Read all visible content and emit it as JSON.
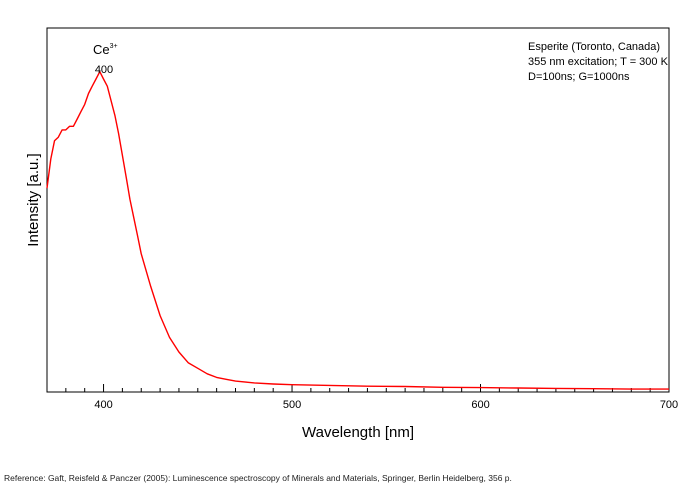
{
  "chart_data": {
    "type": "line",
    "xlabel": "Wavelength [nm]",
    "ylabel": "Intensity [a.u.]",
    "xlim": [
      370,
      700
    ],
    "ylim": [
      0,
      1
    ],
    "x_ticks": [
      400,
      500,
      600,
      700
    ],
    "y_ticks_labeled": false,
    "grid": false,
    "series": [
      {
        "color": "#ff0000",
        "x": [
          370,
          372,
          374,
          376,
          378,
          380,
          382,
          384,
          386,
          388,
          390,
          392,
          394,
          396,
          398,
          400,
          402,
          404,
          406,
          408,
          410,
          412,
          414,
          416,
          418,
          420,
          425,
          430,
          435,
          440,
          445,
          450,
          455,
          460,
          465,
          470,
          480,
          490,
          500,
          520,
          540,
          560,
          580,
          600,
          620,
          640,
          660,
          680,
          700
        ],
        "y": [
          0.56,
          0.64,
          0.69,
          0.7,
          0.72,
          0.72,
          0.73,
          0.73,
          0.75,
          0.77,
          0.79,
          0.82,
          0.84,
          0.86,
          0.88,
          0.86,
          0.84,
          0.8,
          0.76,
          0.71,
          0.65,
          0.59,
          0.53,
          0.48,
          0.43,
          0.38,
          0.29,
          0.21,
          0.15,
          0.11,
          0.08,
          0.065,
          0.05,
          0.04,
          0.035,
          0.03,
          0.025,
          0.022,
          0.02,
          0.018,
          0.016,
          0.015,
          0.013,
          0.012,
          0.011,
          0.01,
          0.009,
          0.008,
          0.008
        ]
      }
    ],
    "annotations": {
      "peak_ion_base": "Ce",
      "peak_ion_sup": "3+",
      "peak_wavelength": "400",
      "info_lines": [
        "Esperite (Toronto, Canada)",
        "355 nm excitation; T = 300 K",
        "D=100ns; G=1000ns"
      ]
    }
  },
  "reference": "Reference: Gaft, Reisfeld & Panczer (2005): Luminescence spectroscopy of Minerals and Materials, Springer, Berlin Heidelberg, 356 p."
}
